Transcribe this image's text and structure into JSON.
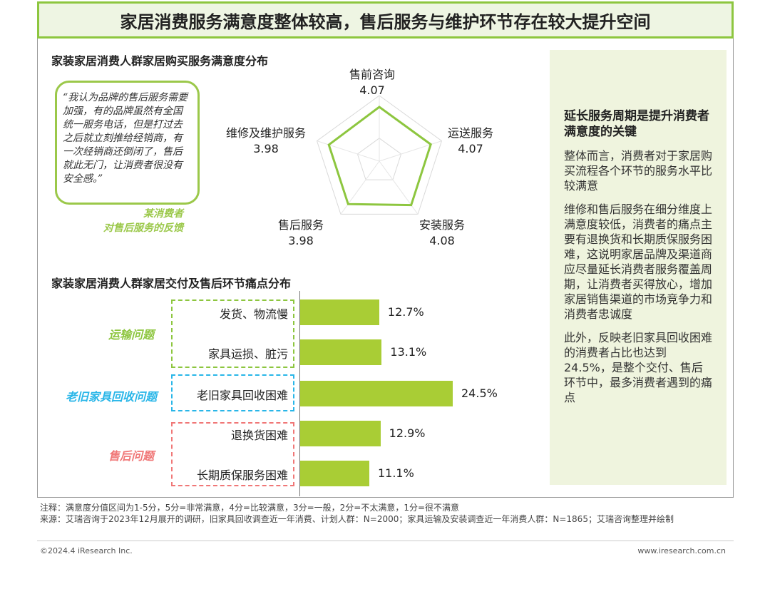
{
  "header": {
    "title": "家居消费服务满意度整体较高，售后服务与维护环节存在较大提升空间"
  },
  "radar_section": {
    "title": "家装家居消费人群家居购买服务满意度分布"
  },
  "bar_section": {
    "title": "家装家居消费人群家居交付及售后环节痛点分布"
  },
  "quote": {
    "text": "“我认为品牌的售后服务需要加强，有的品牌虽然有全国统一服务电话，但是打过去之后就立刻推给经销商，有一次经销商还倒闭了，售后就此无门，让消费者很没有安全感。”",
    "source_line1": "某消费者",
    "source_line2": "对售后服务的反馈"
  },
  "chart_data": [
    {
      "type": "radar",
      "categories": [
        "售前咨询",
        "运送服务",
        "安装服务",
        "售后服务",
        "维修及维护服务"
      ],
      "values": [
        4.07,
        4.07,
        4.08,
        3.98,
        3.98
      ],
      "value_labels": [
        "4.07",
        "4.07",
        "4.08",
        "3.98",
        "3.98"
      ],
      "range": [
        1,
        5
      ],
      "color": "#8dc63f"
    },
    {
      "type": "bar",
      "orientation": "horizontal",
      "categories": [
        "发货、物流慢",
        "家具运损、脏污",
        "老旧家具回收困难",
        "退换货困难",
        "长期质保服务困难"
      ],
      "values": [
        12.7,
        13.1,
        24.5,
        12.9,
        11.1
      ],
      "value_labels": [
        "12.7%",
        "13.1%",
        "24.5%",
        "12.9%",
        "11.1%"
      ],
      "unit": "%",
      "color": "#a9cd35",
      "groups": [
        {
          "label": "运输问题",
          "color": "#8dc63f"
        },
        {
          "label": "老旧家具回收问题",
          "color": "#29b6e8"
        },
        {
          "label": "售后问题",
          "color": "#f07777"
        }
      ]
    }
  ],
  "side_panel": {
    "heading": "延长服务周期是提升消费者满意度的关键",
    "para1": "整体而言，消费者对于家居购买流程各个环节的服务水平比较满意",
    "para2": "维修和售后服务在细分维度上满意度较低，消费者的痛点主要有退换货和长期质保服务困难，这说明家居品牌及渠道商应尽量延长消费者服务覆盖周期，让消费者买得放心，增加家居销售渠道的市场竞争力和消费者忠诚度",
    "para3": "此外，反映老旧家具回收困难的消费者占比也达到24.5%，是整个交付、售后环节中，最多消费者遇到的痛点"
  },
  "footer": {
    "note": "注释：满意度分值区间为1-5分，5分=非常满意，4分=比较满意，3分=一般，2分=不太满意，1分=很不满意",
    "source": "来源：艾瑞咨询于2023年12月展开的调研，旧家具回收调查近一年消费、计划人群：N=2000；家具运输及安装调查近一年消费人群：N=1865；艾瑞咨询整理并绘制",
    "copyright": "©2024.4 iResearch Inc.",
    "site": "www.iresearch.com.cn"
  }
}
